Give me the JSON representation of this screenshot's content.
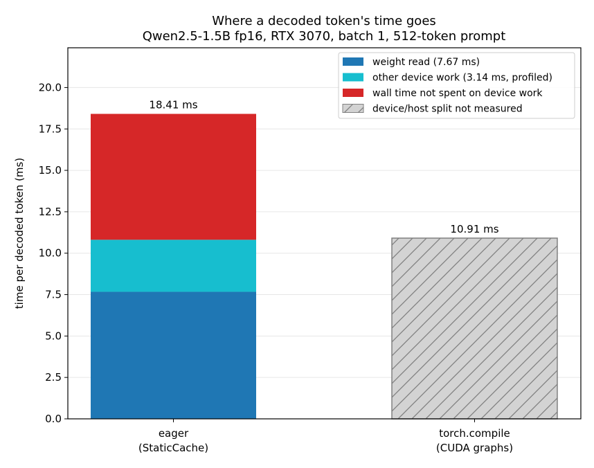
{
  "chart_data": {
    "type": "bar",
    "stacked": true,
    "title": "Where a decoded token's time goes",
    "subtitle": "Qwen2.5-1.5B fp16, RTX 3070, batch 1, 512-token prompt",
    "xlabel": "",
    "ylabel": "time per decoded token (ms)",
    "ylim": [
      0,
      22.4
    ],
    "yticks": [
      0.0,
      2.5,
      5.0,
      7.5,
      10.0,
      12.5,
      15.0,
      17.5,
      20.0
    ],
    "ytick_labels": [
      "0.0",
      "2.5",
      "5.0",
      "7.5",
      "10.0",
      "12.5",
      "15.0",
      "17.5",
      "20.0"
    ],
    "grid": "horizontal",
    "legend_position": "top-right",
    "categories": [
      {
        "line1": "eager",
        "line2": "(StaticCache)"
      },
      {
        "line1": "torch.compile",
        "line2": "(CUDA graphs)"
      }
    ],
    "series": [
      {
        "name": "weight read (7.67 ms)",
        "color": "#1f77b4",
        "values": [
          7.67,
          null
        ]
      },
      {
        "name": "other device work (3.14 ms, profiled)",
        "color": "#17becf",
        "values": [
          3.14,
          null
        ]
      },
      {
        "name": "wall time not spent on device work",
        "color": "#d62728",
        "values": [
          7.6,
          null
        ]
      },
      {
        "name": "device/host split not measured",
        "color": "#d3d3d3",
        "hatch": true,
        "values": [
          null,
          10.91
        ]
      }
    ],
    "totals": [
      18.41,
      10.91
    ],
    "total_labels": [
      "18.41 ms",
      "10.91 ms"
    ]
  }
}
